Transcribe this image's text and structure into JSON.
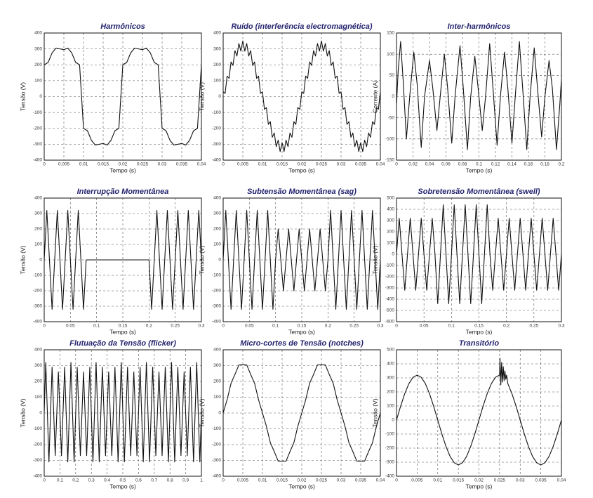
{
  "chart_data": [
    {
      "type": "line",
      "title": "Harmônicos",
      "xlabel": "Tempo (s)",
      "ylabel": "Tensão (V)",
      "color": "#111111",
      "grid": true,
      "xlim": [
        0,
        0.04
      ],
      "xticks": [
        0,
        0.005,
        0.01,
        0.015,
        0.02,
        0.025,
        0.03,
        0.035,
        0.04
      ],
      "ylim": [
        -400,
        400
      ],
      "yticks": [
        -400,
        -300,
        -200,
        -100,
        0,
        100,
        200,
        300,
        400
      ],
      "x": [
        0,
        0.001,
        0.002,
        0.003,
        0.004,
        0.005,
        0.006,
        0.007,
        0.008,
        0.009,
        0.01,
        0.011,
        0.012,
        0.013,
        0.014,
        0.015,
        0.016,
        0.017,
        0.018,
        0.019,
        0.02,
        0.021,
        0.022,
        0.023,
        0.024,
        0.025,
        0.026,
        0.027,
        0.028,
        0.029,
        0.03,
        0.031,
        0.032,
        0.033,
        0.034,
        0.035,
        0.036,
        0.037,
        0.038,
        0.039,
        0.04
      ],
      "values": [
        200,
        215,
        275,
        305,
        300,
        295,
        305,
        275,
        215,
        200,
        -200,
        -215,
        -275,
        -305,
        -300,
        -295,
        -305,
        -275,
        -215,
        -200,
        200,
        215,
        275,
        305,
        300,
        295,
        305,
        275,
        215,
        200,
        -200,
        -215,
        -275,
        -305,
        -300,
        -295,
        -305,
        -275,
        -215,
        -200,
        200
      ]
    },
    {
      "type": "line",
      "title": "Ruído (interferência electromagnética)",
      "xlabel": "Tempo (s)",
      "ylabel": "Tensão (V)",
      "color": "#111111",
      "grid": true,
      "xlim": [
        0,
        0.04
      ],
      "xticks": [
        0,
        0.005,
        0.01,
        0.015,
        0.02,
        0.025,
        0.03,
        0.035,
        0.04
      ],
      "ylim": [
        -400,
        400
      ],
      "yticks": [
        -400,
        -300,
        -200,
        -100,
        0,
        100,
        200,
        300,
        400
      ],
      "x": [
        0,
        0.0005,
        0.001,
        0.0015,
        0.002,
        0.0025,
        0.003,
        0.0035,
        0.004,
        0.0045,
        0.005,
        0.0055,
        0.006,
        0.0065,
        0.007,
        0.0075,
        0.008,
        0.0085,
        0.009,
        0.0095,
        0.01,
        0.0105,
        0.011,
        0.0115,
        0.012,
        0.0125,
        0.013,
        0.0135,
        0.014,
        0.0145,
        0.015,
        0.0155,
        0.016,
        0.0165,
        0.017,
        0.0175,
        0.018,
        0.0185,
        0.019,
        0.0195,
        0.02,
        0.0205,
        0.021,
        0.0215,
        0.022,
        0.0225,
        0.023,
        0.0235,
        0.024,
        0.0245,
        0.025,
        0.0255,
        0.026,
        0.0265,
        0.027,
        0.0275,
        0.028,
        0.0285,
        0.029,
        0.0295,
        0.03,
        0.0305,
        0.031,
        0.0315,
        0.032,
        0.0325,
        0.033,
        0.0335,
        0.034,
        0.0345,
        0.035,
        0.0355,
        0.036,
        0.0365,
        0.037,
        0.0375,
        0.038,
        0.0385,
        0.039,
        0.0395,
        0.04
      ],
      "values": [
        30,
        20,
        129,
        115,
        218,
        196,
        289,
        255,
        334,
        286,
        350,
        286,
        334,
        255,
        289,
        196,
        218,
        115,
        129,
        20,
        30,
        -80,
        -69,
        -175,
        -158,
        -256,
        -229,
        -315,
        -274,
        -346,
        -290,
        -346,
        -274,
        -315,
        -229,
        -256,
        -158,
        -175,
        -69,
        -80,
        30,
        20,
        129,
        115,
        218,
        196,
        289,
        255,
        334,
        286,
        350,
        286,
        334,
        255,
        289,
        196,
        218,
        115,
        129,
        20,
        30,
        -80,
        -69,
        -175,
        -158,
        -256,
        -229,
        -315,
        -274,
        -346,
        -290,
        -346,
        -274,
        -315,
        -229,
        -256,
        -158,
        -175,
        -69,
        -80,
        30
      ]
    },
    {
      "type": "line",
      "title": "Inter-harmônicos",
      "xlabel": "Tempo (s)",
      "ylabel": "Corrente (A)",
      "color": "#111111",
      "grid": true,
      "xlim": [
        0,
        0.2
      ],
      "xticks": [
        0,
        0.02,
        0.04,
        0.06,
        0.08,
        0.1,
        0.12,
        0.14,
        0.16,
        0.18,
        0.2
      ],
      "ylim": [
        -150,
        150
      ],
      "yticks": [
        -150,
        -100,
        -50,
        0,
        50,
        100,
        150
      ],
      "x": [
        0,
        0.002,
        0.005,
        0.008,
        0.012,
        0.016,
        0.021,
        0.025,
        0.03,
        0.034,
        0.04,
        0.044,
        0.049,
        0.053,
        0.058,
        0.062,
        0.067,
        0.071,
        0.077,
        0.081,
        0.086,
        0.09,
        0.095,
        0.099,
        0.104,
        0.108,
        0.113,
        0.117,
        0.122,
        0.126,
        0.131,
        0.135,
        0.14,
        0.144,
        0.149,
        0.153,
        0.158,
        0.162,
        0.167,
        0.171,
        0.176,
        0.18,
        0.185,
        0.189,
        0.194,
        0.198,
        0.2
      ],
      "values": [
        -20,
        60,
        130,
        40,
        -100,
        0,
        105,
        30,
        -120,
        0,
        85,
        20,
        -80,
        0,
        100,
        20,
        -110,
        0,
        120,
        20,
        -125,
        0,
        95,
        20,
        -80,
        0,
        125,
        20,
        -115,
        0,
        105,
        20,
        -110,
        0,
        130,
        20,
        -125,
        0,
        115,
        20,
        -95,
        0,
        85,
        20,
        -125,
        -20,
        40
      ]
    },
    {
      "type": "line",
      "title": "Interrupção Momentânea",
      "xlabel": "Tempo (s)",
      "ylabel": "Tensão (V)",
      "color": "#111111",
      "grid": true,
      "xlim": [
        0,
        0.3
      ],
      "xticks": [
        0,
        0.05,
        0.1,
        0.15,
        0.2,
        0.25,
        0.3
      ],
      "ylim": [
        -400,
        400
      ],
      "yticks": [
        -400,
        -300,
        -200,
        -100,
        0,
        100,
        200,
        300,
        400
      ],
      "x": [
        0,
        0.005,
        0.01,
        0.015,
        0.02,
        0.025,
        0.03,
        0.035,
        0.04,
        0.045,
        0.05,
        0.055,
        0.06,
        0.065,
        0.07,
        0.075,
        0.08,
        0.2,
        0.205,
        0.21,
        0.215,
        0.22,
        0.225,
        0.23,
        0.235,
        0.24,
        0.245,
        0.25,
        0.255,
        0.26,
        0.265,
        0.27,
        0.275,
        0.28,
        0.285,
        0.29,
        0.295,
        0.3
      ],
      "values": [
        0,
        320,
        0,
        -320,
        0,
        320,
        0,
        -320,
        0,
        320,
        0,
        -320,
        0,
        320,
        0,
        -320,
        0,
        0,
        -320,
        0,
        320,
        0,
        -320,
        0,
        320,
        0,
        -320,
        0,
        320,
        0,
        -320,
        0,
        320,
        0,
        -320,
        0,
        320,
        0
      ]
    },
    {
      "type": "line",
      "title": "Subtensão Momentânea (sag)",
      "xlabel": "Tempo (s)",
      "ylabel": "Tensão (V)",
      "color": "#111111",
      "grid": true,
      "xlim": [
        0,
        0.3
      ],
      "xticks": [
        0,
        0.05,
        0.1,
        0.15,
        0.2,
        0.25,
        0.3
      ],
      "ylim": [
        -400,
        400
      ],
      "yticks": [
        -400,
        -300,
        -200,
        -100,
        0,
        100,
        200,
        300,
        400
      ],
      "x": [
        0,
        0.005,
        0.01,
        0.015,
        0.02,
        0.025,
        0.03,
        0.035,
        0.04,
        0.045,
        0.05,
        0.055,
        0.06,
        0.065,
        0.07,
        0.075,
        0.08,
        0.085,
        0.09,
        0.095,
        0.1,
        0.105,
        0.11,
        0.115,
        0.12,
        0.125,
        0.13,
        0.135,
        0.14,
        0.145,
        0.15,
        0.155,
        0.16,
        0.165,
        0.17,
        0.175,
        0.18,
        0.185,
        0.19,
        0.195,
        0.2,
        0.205,
        0.21,
        0.215,
        0.22,
        0.225,
        0.23,
        0.235,
        0.24,
        0.245,
        0.25,
        0.255,
        0.26,
        0.265,
        0.27,
        0.275,
        0.28,
        0.285,
        0.29,
        0.295,
        0.3
      ],
      "values": [
        0,
        320,
        0,
        -320,
        0,
        320,
        0,
        -320,
        0,
        320,
        0,
        -320,
        0,
        320,
        0,
        -320,
        0,
        320,
        0,
        -320,
        0,
        200,
        0,
        -200,
        0,
        200,
        0,
        -200,
        0,
        200,
        0,
        -200,
        0,
        200,
        0,
        -200,
        0,
        200,
        0,
        -200,
        0,
        320,
        0,
        -320,
        0,
        320,
        0,
        -320,
        0,
        320,
        0,
        -320,
        0,
        320,
        0,
        -320,
        0,
        320,
        0,
        -320,
        0
      ]
    },
    {
      "type": "line",
      "title": "Sobretensão Momentânea (swell)",
      "xlabel": "Tempo (s)",
      "ylabel": "Tensão (V)",
      "color": "#111111",
      "grid": true,
      "xlim": [
        0,
        0.3
      ],
      "xticks": [
        0,
        0.05,
        0.1,
        0.15,
        0.2,
        0.25,
        0.3
      ],
      "ylim": [
        -600,
        500
      ],
      "yticks": [
        -600,
        -500,
        -400,
        -300,
        -200,
        -100,
        0,
        100,
        200,
        300,
        400,
        500
      ],
      "x": [
        0,
        0.005,
        0.01,
        0.015,
        0.02,
        0.025,
        0.03,
        0.035,
        0.04,
        0.045,
        0.05,
        0.055,
        0.06,
        0.065,
        0.07,
        0.075,
        0.08,
        0.085,
        0.09,
        0.095,
        0.1,
        0.105,
        0.11,
        0.115,
        0.12,
        0.125,
        0.13,
        0.135,
        0.14,
        0.145,
        0.15,
        0.155,
        0.16,
        0.165,
        0.17,
        0.175,
        0.18,
        0.185,
        0.19,
        0.195,
        0.2,
        0.205,
        0.21,
        0.215,
        0.22,
        0.225,
        0.23,
        0.235,
        0.24,
        0.245,
        0.25,
        0.255,
        0.26,
        0.265,
        0.27,
        0.275,
        0.28,
        0.285,
        0.29,
        0.295,
        0.3
      ],
      "values": [
        0,
        320,
        0,
        -320,
        0,
        320,
        0,
        -320,
        0,
        320,
        0,
        -320,
        0,
        320,
        0,
        -440,
        0,
        440,
        0,
        -440,
        0,
        440,
        0,
        -440,
        0,
        440,
        0,
        -440,
        0,
        440,
        0,
        -440,
        0,
        440,
        0,
        -320,
        0,
        320,
        0,
        -320,
        0,
        320,
        0,
        -320,
        0,
        320,
        0,
        -320,
        0,
        320,
        0,
        -320,
        0,
        320,
        0,
        -320,
        0,
        320,
        0,
        -320,
        0
      ]
    },
    {
      "type": "line",
      "title": "Flutuação da Tensão (flicker)",
      "xlabel": "Tempo (s)",
      "ylabel": "Tensão (V)",
      "color": "#111111",
      "grid": true,
      "xlim": [
        0,
        1
      ],
      "xticks": [
        0,
        0.1,
        0.2,
        0.3,
        0.4,
        0.5,
        0.6,
        0.7,
        0.8,
        0.9,
        1
      ],
      "ylim": [
        -400,
        400
      ],
      "yticks": [
        -400,
        -300,
        -200,
        -100,
        0,
        100,
        200,
        300,
        400
      ],
      "x": [
        0,
        0.01,
        0.03,
        0.05,
        0.07,
        0.09,
        0.11,
        0.13,
        0.15,
        0.17,
        0.19,
        0.21,
        0.23,
        0.25,
        0.27,
        0.29,
        0.31,
        0.33,
        0.35,
        0.37,
        0.39,
        0.41,
        0.43,
        0.45,
        0.47,
        0.49,
        0.51,
        0.53,
        0.55,
        0.57,
        0.59,
        0.61,
        0.63,
        0.65,
        0.67,
        0.69,
        0.71,
        0.73,
        0.75,
        0.77,
        0.79,
        0.81,
        0.83,
        0.85,
        0.87,
        0.89,
        0.91,
        0.93,
        0.95,
        0.97,
        0.99,
        1
      ],
      "values": [
        0,
        320,
        -310,
        290,
        -270,
        260,
        -270,
        290,
        -310,
        320,
        -310,
        290,
        -270,
        260,
        -270,
        290,
        -310,
        320,
        -310,
        290,
        -270,
        260,
        -270,
        290,
        -310,
        320,
        -310,
        290,
        -270,
        260,
        -270,
        290,
        -310,
        320,
        -310,
        290,
        -270,
        260,
        -270,
        290,
        -310,
        320,
        -310,
        290,
        -270,
        260,
        -270,
        290,
        -310,
        320,
        -310,
        0
      ]
    },
    {
      "type": "line",
      "title": "Micro-cortes de Tensão (notches)",
      "xlabel": "Tempo (s)",
      "ylabel": "Tensão (V)",
      "color": "#111111",
      "grid": true,
      "xlim": [
        0,
        0.04
      ],
      "xticks": [
        0,
        0.005,
        0.01,
        0.015,
        0.02,
        0.025,
        0.03,
        0.035,
        0.04
      ],
      "ylim": [
        -400,
        400
      ],
      "yticks": [
        -400,
        -300,
        -200,
        -100,
        0,
        100,
        200,
        300,
        400
      ],
      "x": [
        0,
        0.001,
        0.002,
        0.003,
        0.004,
        0.005,
        0.006,
        0.007,
        0.008,
        0.009,
        0.01,
        0.011,
        0.012,
        0.013,
        0.014,
        0.015,
        0.016,
        0.017,
        0.018,
        0.019,
        0.02,
        0.021,
        0.022,
        0.023,
        0.024,
        0.025,
        0.026,
        0.027,
        0.028,
        0.029,
        0.03,
        0.031,
        0.032,
        0.033,
        0.034,
        0.035,
        0.036,
        0.037,
        0.038,
        0.039,
        0.04
      ],
      "values": [
        0,
        84,
        188,
        244,
        304,
        305,
        304,
        244,
        188,
        84,
        0,
        -84,
        -188,
        -244,
        -304,
        -305,
        -304,
        -244,
        -188,
        -84,
        0,
        84,
        188,
        244,
        304,
        305,
        304,
        244,
        188,
        84,
        0,
        -84,
        -188,
        -244,
        -304,
        -305,
        -304,
        -244,
        -188,
        -84,
        0
      ]
    },
    {
      "type": "line",
      "title": "Transitório",
      "xlabel": "Tempo (s)",
      "ylabel": "Tensão (V)",
      "color": "#111111",
      "grid": true,
      "xlim": [
        0,
        0.04
      ],
      "xticks": [
        0,
        0.005,
        0.01,
        0.015,
        0.02,
        0.025,
        0.03,
        0.035,
        0.04
      ],
      "ylim": [
        -400,
        500
      ],
      "yticks": [
        -400,
        -300,
        -200,
        -100,
        0,
        100,
        200,
        300,
        400,
        500
      ],
      "x": [
        0,
        0.001,
        0.002,
        0.003,
        0.004,
        0.005,
        0.006,
        0.007,
        0.008,
        0.009,
        0.01,
        0.011,
        0.012,
        0.013,
        0.014,
        0.015,
        0.016,
        0.017,
        0.018,
        0.019,
        0.02,
        0.021,
        0.022,
        0.023,
        0.024,
        0.025,
        0.0251,
        0.0253,
        0.0255,
        0.0257,
        0.0259,
        0.0261,
        0.0263,
        0.0265,
        0.0267,
        0.027,
        0.028,
        0.029,
        0.03,
        0.031,
        0.032,
        0.033,
        0.034,
        0.035,
        0.036,
        0.037,
        0.038,
        0.039,
        0.04
      ],
      "values": [
        0,
        99,
        188,
        259,
        304,
        320,
        304,
        259,
        188,
        99,
        0,
        -99,
        -188,
        -259,
        -304,
        -320,
        -304,
        -259,
        -188,
        -99,
        0,
        99,
        188,
        259,
        304,
        320,
        440,
        250,
        410,
        270,
        380,
        280,
        350,
        290,
        320,
        259,
        188,
        99,
        0,
        -99,
        -188,
        -259,
        -304,
        -320,
        -304,
        -259,
        -188,
        -99,
        0
      ]
    }
  ]
}
